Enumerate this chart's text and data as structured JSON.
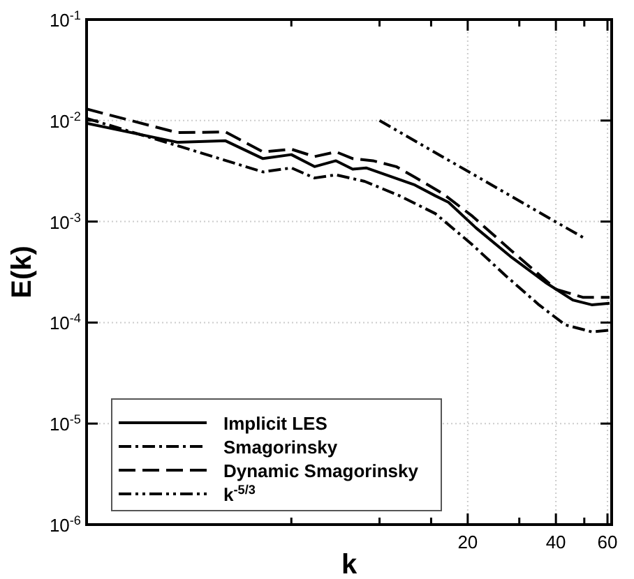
{
  "chart_data": {
    "type": "line",
    "xlabel": "k",
    "ylabel": "E(k)",
    "log": "xy",
    "grid": true,
    "legend": "bottom left",
    "xlim": [
      1,
      62
    ],
    "ylim": [
      1e-06,
      0.1
    ],
    "xticks": [
      {
        "value": 5,
        "label": null
      },
      {
        "value": 10,
        "label": null
      },
      {
        "value": 15,
        "label": null
      },
      20,
      {
        "value": 30,
        "label": null
      },
      40,
      {
        "value": 50,
        "label": null
      },
      60
    ],
    "yticks": [
      {
        "value": 1e-06,
        "label": "10$^{-6}$"
      },
      {
        "value": 1e-05,
        "label": "10$^{-5}$"
      },
      {
        "value": 0.0001,
        "label": "10$^{-4}$"
      },
      {
        "value": 0.001,
        "label": "10$^{-3}$"
      },
      {
        "value": 0.01,
        "label": "10$^{-2}$"
      },
      {
        "value": 0.1,
        "label": "10$^{-1}$"
      }
    ],
    "series": [
      {
        "name": "Implicit LES",
        "color": "#000000",
        "line_style": "solid",
        "x": [
          1,
          2.04,
          2.98,
          4,
          5,
          6,
          7.1,
          8.1,
          9,
          10.9,
          13.2,
          15.5,
          17.2,
          21.3,
          28.3,
          37.2,
          45.7,
          53,
          61
        ],
        "values": [
          0.0094,
          0.0061,
          0.0063,
          0.0042,
          0.0046,
          0.0035,
          0.004,
          0.0033,
          0.0034,
          0.0028,
          0.0023,
          0.0018,
          0.00155,
          0.00087,
          0.00044,
          0.000245,
          0.000167,
          0.00015,
          0.000155
        ]
      },
      {
        "name": "Smagorinsky",
        "color": "#000000",
        "line_style": "dashdot",
        "x": [
          1,
          2.1,
          4,
          5,
          6,
          7.1,
          8.9,
          11.7,
          15.5,
          20.6,
          27,
          35,
          43,
          53,
          61
        ],
        "values": [
          0.0105,
          0.0055,
          0.0031,
          0.0034,
          0.0027,
          0.0029,
          0.0025,
          0.0018,
          0.0012,
          0.0006,
          0.00029,
          0.00015,
          9.5e-05,
          8.1e-05,
          8.4e-05
        ]
      },
      {
        "name": "Dynamic Smagorinsky",
        "color": "#000000",
        "line_style": "dashed",
        "x": [
          1,
          2.04,
          2.98,
          4,
          5,
          6,
          7.1,
          8.1,
          9.5,
          11.4,
          13.2,
          16.4,
          20.6,
          28.3,
          40,
          49.4,
          61
        ],
        "values": [
          0.013,
          0.0076,
          0.0077,
          0.0049,
          0.0052,
          0.0044,
          0.0049,
          0.0042,
          0.004,
          0.0035,
          0.00275,
          0.0019,
          0.00115,
          0.00051,
          0.000214,
          0.000178,
          0.000178
        ]
      },
      {
        "name": "k$^{-5/3}$",
        "color": "#000000",
        "line_style": "dashdotdot",
        "x": [
          10,
          50
        ],
        "values": [
          0.01,
          0.000684
        ]
      }
    ]
  }
}
